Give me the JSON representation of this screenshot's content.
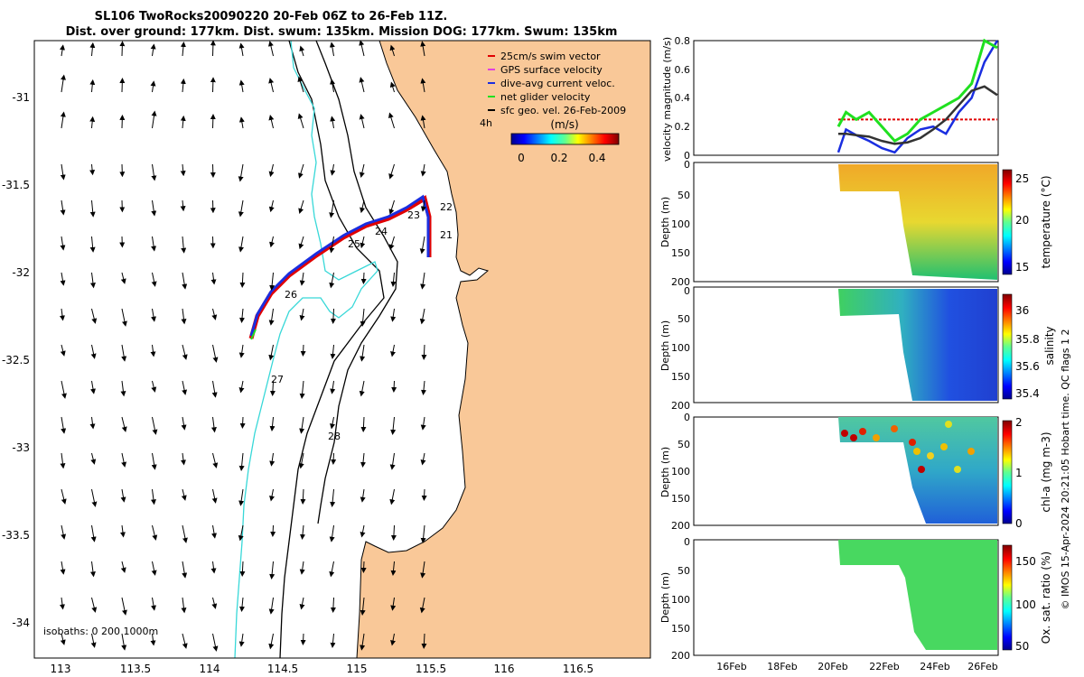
{
  "title_line1": "SL106 TwoRocks20090220 20-Feb 06Z to 26-Feb 11Z.",
  "title_line2": "Dist. over ground: 177km. Dist. swum: 135km. Mission DOG: 177km. Swum: 135km",
  "colors": {
    "land": "#f9c898",
    "isobath_200": "#000000",
    "isobath_1000": "#000000",
    "isobath_0": "#38d8d8",
    "track_red": "#e00000",
    "track_blue": "#1a2ee0",
    "gps": "#e040e0",
    "net": "#20e020",
    "geo": "#333333"
  },
  "map": {
    "lon_ticks": [
      "113",
      "113.5",
      "114",
      "114.5",
      "115",
      "115.5",
      "116",
      "116.5"
    ],
    "lat_ticks": [
      "-31",
      "-31.5",
      "-32",
      "-32.5",
      "-33",
      "-33.5",
      "-34"
    ],
    "legend": [
      "25cm/s swim vector",
      "GPS surface velocity",
      "dive-avg current veloc.",
      "net glider velocity",
      "sfc geo. vel. 26-Feb-2009"
    ],
    "time_label": "4h",
    "colorbar_title": "(m/s)",
    "colorbar_ticks": [
      "0",
      "0.2",
      "0.4"
    ],
    "isobaths_note": "isobaths: 0   200  1000m",
    "day_labels": [
      "21",
      "22",
      "23",
      "24",
      "25",
      "26",
      "27",
      "28"
    ]
  },
  "chart_data": [
    {
      "type": "line",
      "title": "",
      "ylabel": "velocity magnitude (m/s)",
      "ylim": [
        0,
        0.8
      ],
      "yticks": [
        "0",
        "0.2",
        "0.4",
        "0.6",
        "0.8"
      ],
      "x_days": [
        "20.3",
        "20.6",
        "21.0",
        "21.5",
        "22.0",
        "22.5",
        "23.0",
        "23.5",
        "24.0",
        "24.5",
        "25.0",
        "25.5",
        "26.0",
        "26.5"
      ],
      "series": [
        {
          "name": "swim vector",
          "values": [
            0.25,
            0.25,
            0.25,
            0.25,
            0.25,
            0.25,
            0.25,
            0.25,
            0.25,
            0.25,
            0.25,
            0.25,
            0.25,
            0.25
          ]
        },
        {
          "name": "dive-avg current",
          "values": [
            0.02,
            0.18,
            0.14,
            0.1,
            0.05,
            0.02,
            0.12,
            0.18,
            0.2,
            0.15,
            0.3,
            0.4,
            0.65,
            0.85
          ]
        },
        {
          "name": "net glider",
          "values": [
            0.2,
            0.3,
            0.25,
            0.3,
            0.2,
            0.1,
            0.15,
            0.25,
            0.3,
            0.35,
            0.4,
            0.5,
            0.8,
            0.75
          ]
        },
        {
          "name": "sfc geo vel",
          "values": [
            0.15,
            0.15,
            0.14,
            0.13,
            0.1,
            0.08,
            0.09,
            0.12,
            0.18,
            0.25,
            0.35,
            0.45,
            0.48,
            0.42
          ]
        }
      ]
    },
    {
      "type": "heatmap",
      "ylabel": "Depth (m)",
      "cbar_label": "temperature (°C)",
      "cbar_ticks": [
        "25",
        "20",
        "15"
      ],
      "yticks": [
        "0",
        "50",
        "100",
        "150",
        "200"
      ]
    },
    {
      "type": "heatmap",
      "ylabel": "Depth (m)",
      "cbar_label": "salinity",
      "cbar_ticks": [
        "36",
        "35.8",
        "35.6",
        "35.4"
      ],
      "yticks": [
        "0",
        "50",
        "100",
        "150",
        "200"
      ]
    },
    {
      "type": "heatmap",
      "ylabel": "Depth (m)",
      "cbar_label": "chl-a (mg m-3)",
      "cbar_ticks": [
        "2",
        "1",
        "0"
      ],
      "yticks": [
        "0",
        "50",
        "100",
        "150",
        "200"
      ]
    },
    {
      "type": "heatmap",
      "ylabel": "Depth (m)",
      "cbar_label": "Ox. sat. ratio (%)",
      "cbar_ticks": [
        "150",
        "100",
        "50"
      ],
      "yticks": [
        "0",
        "50",
        "100",
        "150",
        "200"
      ],
      "xticks": [
        "16Feb",
        "18Feb",
        "20Feb",
        "22Feb",
        "24Feb",
        "26Feb"
      ]
    }
  ],
  "side_note": "© IMOS 15-Apr-2024 20:21:05 Hobart time. QC flags 1  2"
}
